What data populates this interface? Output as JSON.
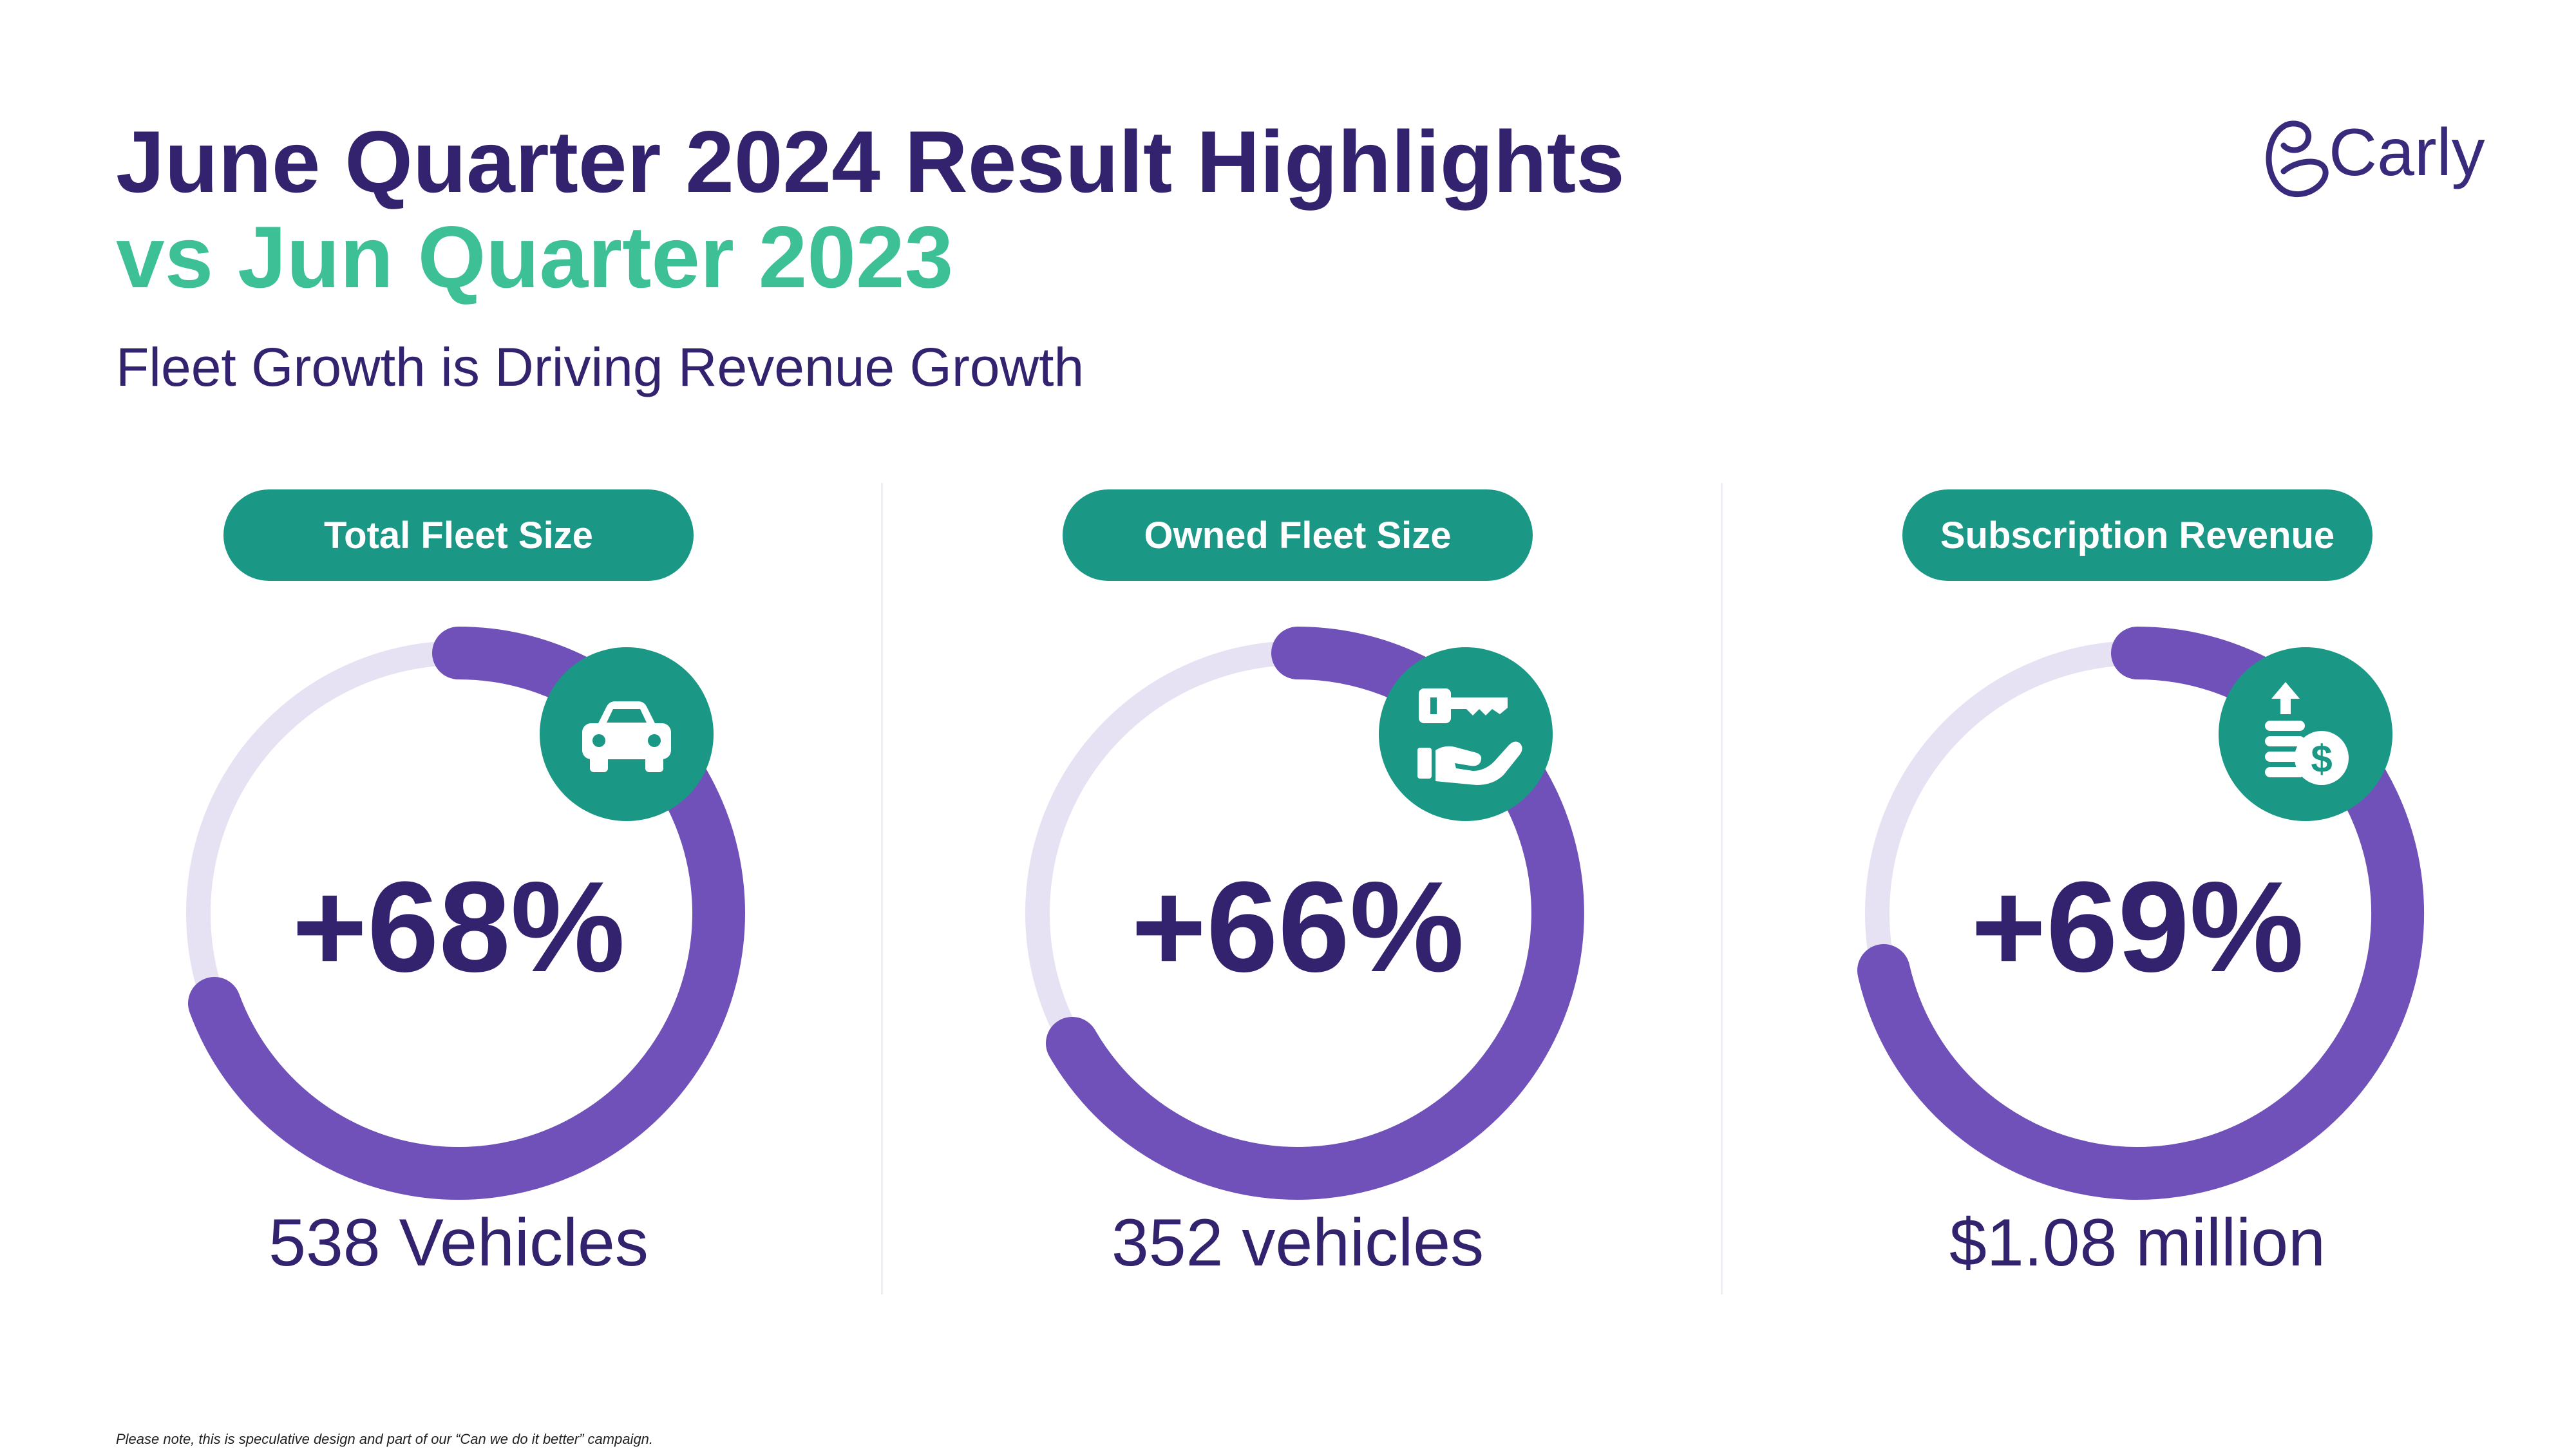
{
  "header": {
    "title": "June Quarter 2024 Result Highlights",
    "comparison": "vs Jun Quarter 2023",
    "subtitle": "Fleet Growth is Driving Revenue Growth"
  },
  "brand": {
    "name": "Carly",
    "primary_color": "#33226e",
    "accent_green": "#3ec096",
    "teal": "#1a9785",
    "ring_purple": "#7051b9",
    "ring_track": "#e7e2f3"
  },
  "metrics": [
    {
      "label": "Total Fleet Size",
      "change": "+68%",
      "value": "538 Vehicles",
      "icon": "car-icon",
      "ring_fraction": 0.68
    },
    {
      "label": "Owned Fleet Size",
      "change": "+66%",
      "value": "352 vehicles",
      "icon": "key-hand-icon",
      "ring_fraction": 0.66
    },
    {
      "label": "Subscription Revenue",
      "change": "+69%",
      "value": "$1.08 million",
      "icon": "coins-dollar-up-icon",
      "ring_fraction": 0.69
    }
  ],
  "footnote": "Please note, this is speculative design and part of our “Can we do it better” campaign."
}
